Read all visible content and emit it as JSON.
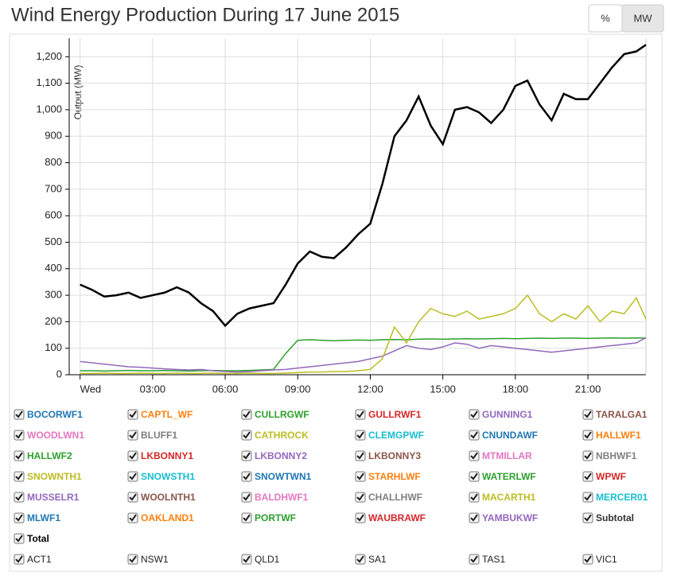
{
  "chart_data": {
    "type": "line",
    "title": "Wind Energy Production During 17 June 2015",
    "buttons": [
      "%",
      "MW"
    ],
    "ylabel": "Output (MW)",
    "x": [
      0,
      0.5,
      1,
      1.5,
      2,
      2.5,
      3,
      3.5,
      4,
      4.5,
      5,
      5.5,
      6,
      6.5,
      7,
      7.5,
      8,
      8.5,
      9,
      9.5,
      10,
      10.5,
      11,
      11.5,
      12,
      12.5,
      13,
      13.5,
      14,
      14.5,
      15,
      15.5,
      16,
      16.5,
      17,
      17.5,
      18,
      18.5,
      19,
      19.5,
      20,
      20.5,
      21,
      21.5,
      22,
      22.5,
      23,
      23.4
    ],
    "xlim": [
      -0.45,
      23.4
    ],
    "xticks": [
      {
        "value": 0,
        "label": "Wed"
      },
      {
        "value": 3,
        "label": "03:00"
      },
      {
        "value": 6,
        "label": "06:00"
      },
      {
        "value": 9,
        "label": "09:00"
      },
      {
        "value": 12,
        "label": "12:00"
      },
      {
        "value": 15,
        "label": "15:00"
      },
      {
        "value": 18,
        "label": "18:00"
      },
      {
        "value": 21,
        "label": "21:00"
      }
    ],
    "ylim": [
      0,
      1270
    ],
    "yticks": [
      0,
      100,
      200,
      300,
      400,
      500,
      600,
      700,
      800,
      900,
      {
        "value": 1000,
        "label": "1,000"
      },
      {
        "value": 1100,
        "label": "1,100"
      },
      {
        "value": 1200,
        "label": "1,200"
      }
    ],
    "grid": true,
    "series": [
      {
        "name": "BOCORWF1",
        "color": "#1f77b4"
      },
      {
        "name": "CAPTL_WF",
        "color": "#ff7f0e"
      },
      {
        "name": "CULLRGWF",
        "color": "#2ca02c"
      },
      {
        "name": "GULLRWF1",
        "color": "#d62728"
      },
      {
        "name": "GUNNING1",
        "color": "#9467bd"
      },
      {
        "name": "TARALGA1",
        "color": "#8c564b"
      },
      {
        "name": "WOODLWN1",
        "color": "#e377c2"
      },
      {
        "name": "BLUFF1",
        "color": "#7f7f7f"
      },
      {
        "name": "CATHROCK",
        "color": "#bcbd22"
      },
      {
        "name": "CLEMGPWF",
        "color": "#17becf"
      },
      {
        "name": "CNUNDAWF",
        "color": "#1f77b4"
      },
      {
        "name": "HALLWF1",
        "color": "#ff7f0e"
      },
      {
        "name": "HALLWF2",
        "color": "#2ca02c"
      },
      {
        "name": "LKBONNY1",
        "color": "#d62728"
      },
      {
        "name": "LKBONNY2",
        "color": "#9467bd"
      },
      {
        "name": "LKBONNY3",
        "color": "#8c564b"
      },
      {
        "name": "MTMILLAR",
        "color": "#e377c2"
      },
      {
        "name": "NBHWF1",
        "color": "#7f7f7f"
      },
      {
        "name": "SNOWNTH1",
        "color": "#bcbd22"
      },
      {
        "name": "SNOWSTH1",
        "color": "#17becf"
      },
      {
        "name": "SNOWTWN1",
        "color": "#1f77b4"
      },
      {
        "name": "STARHLWF",
        "color": "#ff7f0e"
      },
      {
        "name": "WATERLWF",
        "color": "#2ca02c",
        "values": [
          15,
          15,
          14,
          15,
          16,
          15,
          15,
          16,
          15,
          14,
          15,
          16,
          15,
          15,
          16,
          18,
          20,
          80,
          130,
          132,
          130,
          128,
          130,
          131,
          130,
          132,
          133,
          132,
          134,
          135,
          134,
          135,
          136,
          135,
          136,
          137,
          136,
          137,
          138,
          137,
          138,
          138,
          137,
          138,
          139,
          138,
          139,
          138
        ]
      },
      {
        "name": "WPWF",
        "color": "#d62728"
      },
      {
        "name": "MUSSELR1",
        "color": "#9467bd",
        "values": [
          50,
          45,
          40,
          35,
          30,
          28,
          25,
          22,
          20,
          18,
          20,
          15,
          12,
          10,
          12,
          15,
          18,
          20,
          25,
          30,
          35,
          40,
          45,
          50,
          60,
          70,
          90,
          110,
          100,
          95,
          105,
          120,
          115,
          100,
          110,
          105,
          100,
          95,
          90,
          85,
          90,
          95,
          100,
          105,
          110,
          115,
          120,
          140
        ]
      },
      {
        "name": "WOOLNTH1",
        "color": "#8c564b"
      },
      {
        "name": "BALDHWF1",
        "color": "#e377c2"
      },
      {
        "name": "CHALLHWF",
        "color": "#7f7f7f"
      },
      {
        "name": "MACARTH1",
        "color": "#bcbd22",
        "values": [
          5,
          5,
          6,
          5,
          5,
          6,
          5,
          5,
          6,
          5,
          5,
          6,
          5,
          5,
          6,
          5,
          5,
          6,
          8,
          10,
          10,
          12,
          12,
          15,
          20,
          60,
          180,
          120,
          200,
          250,
          230,
          220,
          240,
          210,
          220,
          230,
          250,
          300,
          230,
          200,
          230,
          210,
          260,
          200,
          240,
          230,
          290,
          210
        ]
      },
      {
        "name": "MERCER01",
        "color": "#17becf"
      },
      {
        "name": "MLWF1",
        "color": "#1f77b4"
      },
      {
        "name": "OAKLAND1",
        "color": "#ff7f0e"
      },
      {
        "name": "PORTWF",
        "color": "#2ca02c"
      },
      {
        "name": "WAUBRAWF",
        "color": "#d62728"
      },
      {
        "name": "YAMBUKWF",
        "color": "#9467bd"
      },
      {
        "name": "Subtotal",
        "color": "#333333"
      },
      {
        "name": "Total",
        "color": "#000000",
        "values": [
          340,
          320,
          295,
          300,
          310,
          290,
          300,
          310,
          330,
          310,
          270,
          240,
          185,
          230,
          250,
          260,
          270,
          340,
          420,
          465,
          445,
          440,
          480,
          530,
          570,
          720,
          900,
          960,
          1050,
          940,
          870,
          1000,
          1010,
          990,
          950,
          1000,
          1090,
          1110,
          1020,
          960,
          1060,
          1040,
          1040,
          1100,
          1160,
          1210,
          1220,
          1245
        ]
      }
    ],
    "regions": [
      "ACT1",
      "NSW1",
      "QLD1",
      "SA1",
      "TAS1",
      "VIC1"
    ]
  }
}
